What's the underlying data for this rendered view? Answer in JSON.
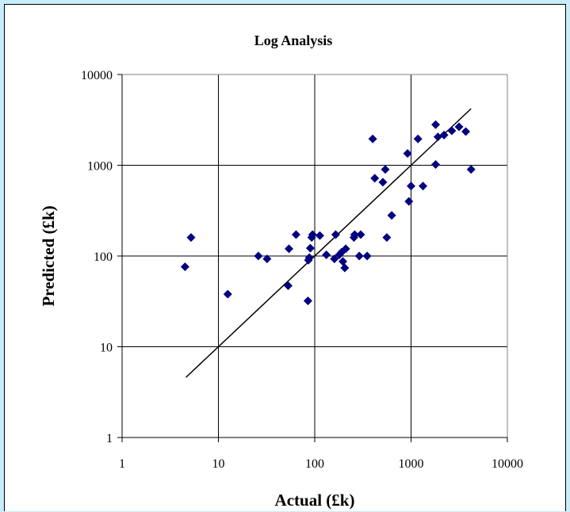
{
  "chart_data": {
    "type": "scatter",
    "title": "Log Analysis",
    "xlabel": "Actual (£k)",
    "ylabel": "Predicted (£k)",
    "x_scale": "log",
    "y_scale": "log",
    "xlim": [
      1,
      10000
    ],
    "ylim": [
      1,
      10000
    ],
    "x_ticks": [
      "1",
      "10",
      "100",
      "1000",
      "10000"
    ],
    "y_ticks": [
      "1",
      "10",
      "100",
      "1000",
      "10000"
    ],
    "grid": true,
    "legend": "none",
    "marker_color": "#000080",
    "line_color": "#000000",
    "points": [
      {
        "x": 4.5,
        "y": 76
      },
      {
        "x": 5.2,
        "y": 160
      },
      {
        "x": 12.5,
        "y": 38
      },
      {
        "x": 26,
        "y": 100
      },
      {
        "x": 32,
        "y": 93
      },
      {
        "x": 53,
        "y": 47
      },
      {
        "x": 54,
        "y": 120
      },
      {
        "x": 64,
        "y": 172
      },
      {
        "x": 85,
        "y": 32
      },
      {
        "x": 86,
        "y": 90
      },
      {
        "x": 88,
        "y": 96
      },
      {
        "x": 90,
        "y": 122
      },
      {
        "x": 93,
        "y": 160
      },
      {
        "x": 95,
        "y": 172
      },
      {
        "x": 113,
        "y": 168
      },
      {
        "x": 132,
        "y": 103
      },
      {
        "x": 160,
        "y": 93
      },
      {
        "x": 165,
        "y": 172
      },
      {
        "x": 180,
        "y": 103
      },
      {
        "x": 190,
        "y": 110
      },
      {
        "x": 196,
        "y": 87
      },
      {
        "x": 205,
        "y": 74
      },
      {
        "x": 210,
        "y": 120
      },
      {
        "x": 255,
        "y": 160
      },
      {
        "x": 260,
        "y": 172
      },
      {
        "x": 290,
        "y": 100
      },
      {
        "x": 300,
        "y": 172
      },
      {
        "x": 350,
        "y": 100
      },
      {
        "x": 400,
        "y": 1950
      },
      {
        "x": 420,
        "y": 720
      },
      {
        "x": 510,
        "y": 650
      },
      {
        "x": 540,
        "y": 900
      },
      {
        "x": 560,
        "y": 160
      },
      {
        "x": 630,
        "y": 280
      },
      {
        "x": 920,
        "y": 1350
      },
      {
        "x": 950,
        "y": 400
      },
      {
        "x": 1000,
        "y": 590
      },
      {
        "x": 1180,
        "y": 1950
      },
      {
        "x": 1330,
        "y": 590
      },
      {
        "x": 1800,
        "y": 2800
      },
      {
        "x": 1800,
        "y": 1020
      },
      {
        "x": 1900,
        "y": 2050
      },
      {
        "x": 2200,
        "y": 2150
      },
      {
        "x": 2650,
        "y": 2400
      },
      {
        "x": 3150,
        "y": 2650
      },
      {
        "x": 3700,
        "y": 2350
      },
      {
        "x": 4200,
        "y": 900
      }
    ],
    "trendline": {
      "x": [
        4.6,
        4200
      ],
      "y": [
        4.6,
        4200
      ]
    }
  }
}
